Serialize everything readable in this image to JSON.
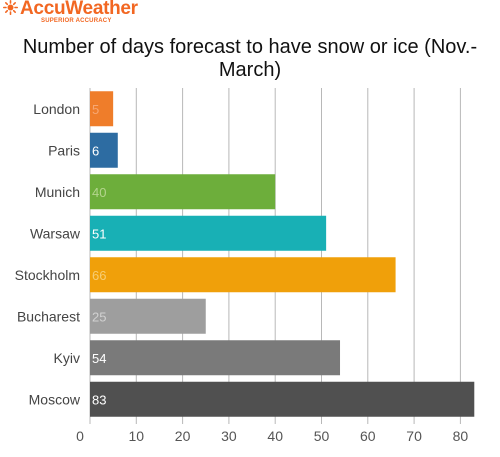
{
  "brand": {
    "name": "AccuWeather",
    "tagline": "SUPERIOR ACCURACY",
    "color": "#f26722"
  },
  "chart_data": {
    "type": "bar",
    "orientation": "horizontal",
    "title": "Number of days forecast to have snow or ice (Nov.-March)",
    "categories": [
      "London",
      "Paris",
      "Munich",
      "Warsaw",
      "Stockholm",
      "Bucharest",
      "Kyiv",
      "Moscow"
    ],
    "values": [
      5,
      6,
      40,
      51,
      66,
      25,
      54,
      83
    ],
    "colors": [
      "#ef7d2a",
      "#2d6ca2",
      "#6dae3b",
      "#18b0b5",
      "#f0a00a",
      "#9e9e9e",
      "#7a7a7a",
      "#505050"
    ],
    "value_label_colors": [
      "#f7a773",
      "#ffffff",
      "#b4d58e",
      "#ffffff",
      "#f7cd73",
      "#d1d1d1",
      "#ffffff",
      "#ffffff"
    ],
    "x_ticks": [
      0,
      10,
      20,
      30,
      40,
      50,
      60,
      70,
      80
    ],
    "xlim": [
      0,
      85
    ],
    "grid": true
  }
}
